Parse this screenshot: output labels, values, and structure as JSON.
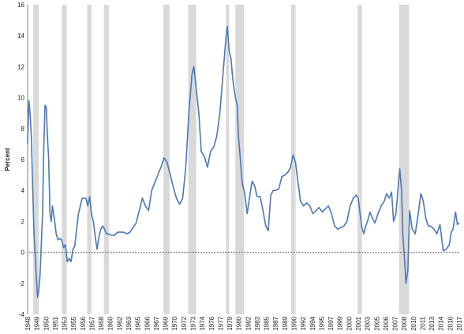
{
  "chart_data": {
    "type": "line",
    "title": "",
    "xlabel": "",
    "ylabel": "Percent",
    "ylim": [
      -4,
      16
    ],
    "yticks": [
      -4,
      -2,
      0,
      2,
      4,
      6,
      8,
      10,
      12,
      14,
      16
    ],
    "xlim": [
      1948.0,
      2017.6
    ],
    "xtick_labels": [
      "1948",
      "1949",
      "1950",
      "1951",
      "1953",
      "1955",
      "1956",
      "1957",
      "1958",
      "1960",
      "1962",
      "1963",
      "1965",
      "1966",
      "1967",
      "1969",
      "1970",
      "1972",
      "1973",
      "1974",
      "1976",
      "1977",
      "1979",
      "1980",
      "1982",
      "1983",
      "1985",
      "1987",
      "1989",
      "1990",
      "1992",
      "1994",
      "1995",
      "1997",
      "1999",
      "2000",
      "2001",
      "2003",
      "2005",
      "2006",
      "2007",
      "2008",
      "2010",
      "2011",
      "2013",
      "2014",
      "2016",
      "2017"
    ],
    "recessions": [
      [
        1948.9,
        1949.8
      ],
      [
        1953.5,
        1954.3
      ],
      [
        1957.6,
        1958.3
      ],
      [
        1960.3,
        1961.1
      ],
      [
        1969.9,
        1970.9
      ],
      [
        1973.9,
        1975.2
      ],
      [
        1980.0,
        1980.5
      ],
      [
        1981.5,
        1982.9
      ],
      [
        1990.5,
        1991.2
      ],
      [
        2001.2,
        2001.9
      ],
      [
        2007.9,
        2009.5
      ]
    ],
    "series": [
      {
        "color": "#4a78b8",
        "x": [
          1948.0,
          1948.2,
          1948.4,
          1948.6,
          1948.8,
          1949.0,
          1949.2,
          1949.4,
          1949.6,
          1949.8,
          1950.0,
          1950.2,
          1950.4,
          1950.6,
          1950.8,
          1951.0,
          1951.2,
          1951.4,
          1951.6,
          1951.8,
          1952.0,
          1952.3,
          1952.6,
          1952.9,
          1953.2,
          1953.5,
          1953.8,
          1954.1,
          1954.4,
          1954.7,
          1955.0,
          1955.3,
          1955.6,
          1955.9,
          1956.2,
          1956.5,
          1956.8,
          1957.1,
          1957.4,
          1957.7,
          1958.0,
          1958.3,
          1958.6,
          1958.9,
          1959.2,
          1959.5,
          1959.8,
          1960.1,
          1960.4,
          1960.7,
          1961.0,
          1961.5,
          1962.0,
          1962.5,
          1963.0,
          1963.5,
          1964.0,
          1964.5,
          1965.0,
          1965.5,
          1966.0,
          1966.5,
          1967.0,
          1967.5,
          1968.0,
          1968.5,
          1969.0,
          1969.5,
          1970.0,
          1970.5,
          1971.0,
          1971.5,
          1972.0,
          1972.5,
          1973.0,
          1973.5,
          1974.0,
          1974.5,
          1974.8,
          1975.2,
          1975.6,
          1976.0,
          1976.5,
          1977.0,
          1977.5,
          1978.0,
          1978.5,
          1979.0,
          1979.5,
          1980.0,
          1980.2,
          1980.5,
          1980.8,
          1981.0,
          1981.2,
          1981.5,
          1981.8,
          1982.0,
          1982.3,
          1982.6,
          1983.0,
          1983.4,
          1983.8,
          1984.2,
          1984.6,
          1985.0,
          1985.5,
          1986.0,
          1986.4,
          1986.8,
          1987.2,
          1987.6,
          1988.0,
          1988.5,
          1989.0,
          1989.5,
          1990.0,
          1990.4,
          1990.8,
          1991.2,
          1991.6,
          1992.0,
          1992.5,
          1993.0,
          1993.5,
          1994.0,
          1994.5,
          1995.0,
          1995.5,
          1996.0,
          1996.5,
          1997.0,
          1997.5,
          1998.0,
          1998.5,
          1999.0,
          1999.5,
          2000.0,
          2000.5,
          2001.0,
          2001.3,
          2001.6,
          2001.9,
          2002.2,
          2002.5,
          2002.8,
          2003.2,
          2003.6,
          2004.0,
          2004.5,
          2005.0,
          2005.5,
          2005.9,
          2006.3,
          2006.7,
          2007.0,
          2007.4,
          2007.8,
          2008.0,
          2008.3,
          2008.5,
          2008.8,
          2009.0,
          2009.3,
          2009.6,
          2010.0,
          2010.5,
          2011.0,
          2011.4,
          2011.8,
          2012.2,
          2012.6,
          2013.0,
          2013.5,
          2014.0,
          2014.5,
          2015.0,
          2015.5,
          2016.0,
          2016.3,
          2016.6,
          2017.0,
          2017.3,
          2017.6
        ],
        "y": [
          7.0,
          9.8,
          9.0,
          7.5,
          4.5,
          1.5,
          0.0,
          -1.5,
          -2.9,
          -2.5,
          -1.5,
          0.5,
          2.5,
          6.5,
          9.5,
          9.4,
          7.5,
          6.0,
          2.5,
          2.0,
          3.0,
          2.2,
          1.2,
          0.8,
          0.9,
          0.8,
          0.3,
          0.5,
          -0.6,
          -0.4,
          -0.6,
          0.2,
          0.4,
          1.5,
          2.5,
          3.0,
          3.5,
          3.5,
          3.5,
          3.0,
          3.6,
          2.5,
          2.0,
          1.0,
          0.2,
          1.0,
          1.5,
          1.7,
          1.5,
          1.2,
          1.2,
          1.1,
          1.1,
          1.3,
          1.3,
          1.3,
          1.2,
          1.3,
          1.6,
          1.9,
          2.7,
          3.5,
          3.0,
          2.7,
          4.0,
          4.5,
          5.0,
          5.5,
          6.1,
          5.8,
          5.0,
          4.2,
          3.5,
          3.1,
          3.5,
          5.5,
          9.0,
          11.5,
          12.0,
          10.5,
          9.0,
          6.5,
          6.2,
          5.5,
          6.5,
          6.8,
          7.5,
          9.0,
          11.5,
          14.0,
          14.6,
          13.0,
          12.5,
          11.5,
          10.8,
          10.0,
          9.5,
          7.5,
          6.0,
          4.5,
          3.8,
          2.5,
          3.6,
          4.6,
          4.3,
          3.6,
          3.6,
          2.6,
          1.7,
          1.4,
          3.7,
          4.0,
          4.0,
          4.1,
          4.9,
          5.0,
          5.2,
          5.5,
          6.3,
          5.8,
          4.5,
          3.3,
          3.0,
          3.2,
          3.0,
          2.5,
          2.7,
          2.9,
          2.6,
          2.8,
          3.0,
          2.5,
          1.7,
          1.5,
          1.6,
          1.7,
          2.0,
          3.0,
          3.5,
          3.7,
          3.5,
          2.5,
          1.6,
          1.2,
          1.7,
          2.0,
          2.6,
          2.2,
          1.9,
          2.5,
          3.0,
          3.3,
          3.8,
          3.5,
          3.9,
          2.0,
          2.5,
          4.5,
          5.4,
          4.0,
          1.1,
          -0.5,
          -2.0,
          -1.2,
          2.7,
          1.5,
          1.2,
          2.5,
          3.8,
          3.3,
          2.2,
          1.7,
          1.7,
          1.5,
          1.2,
          1.8,
          0.1,
          0.2,
          0.5,
          1.3,
          1.5,
          2.6,
          1.8,
          1.9
        ]
      }
    ]
  }
}
